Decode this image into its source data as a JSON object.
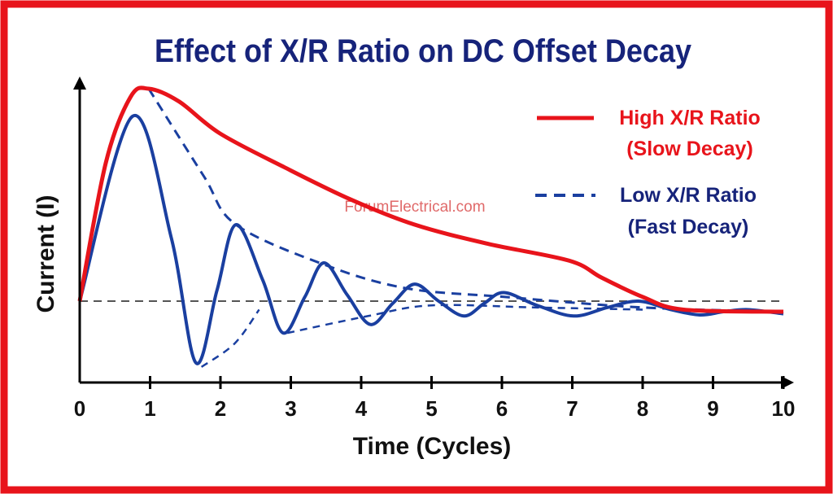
{
  "chart_data": {
    "type": "line",
    "title": "Effect of X/R Ratio on DC Offset Decay",
    "xlabel": "Time (Cycles)",
    "ylabel": "Current (I)",
    "xlim": [
      0,
      10
    ],
    "ylim": [
      -0.38,
      1.05
    ],
    "x_ticks": [
      "0",
      "1",
      "2",
      "3",
      "4",
      "5",
      "6",
      "7",
      "8",
      "9",
      "10"
    ],
    "grid": false,
    "legend_position": "top-right",
    "watermark": "ForumElectrical.com",
    "colors": {
      "frame": "#e8141b",
      "title": "#16237a",
      "high": "#e8141b",
      "low": "#1a3fa0",
      "zero": "#555555",
      "watermark": "#e06a6a"
    },
    "series": [
      {
        "name": "High X/R Ratio",
        "sub": "(Slow Decay)",
        "style": "solid",
        "x": [
          0,
          0.37,
          0.72,
          0.98,
          1.41,
          1.99,
          2.91,
          3.84,
          4.76,
          5.8,
          6.96,
          7.42,
          8.0,
          8.58,
          10
        ],
        "y": [
          0,
          0.65,
          0.96,
          1.0,
          0.94,
          0.79,
          0.63,
          0.48,
          0.36,
          0.27,
          0.19,
          0.11,
          0.02,
          -0.04,
          -0.05
        ]
      },
      {
        "name": "Low X/R Ratio",
        "sub": "(Fast Decay)",
        "style": "dashed",
        "x": [
          0.98,
          1.76,
          2.22,
          3.49,
          4.65,
          6.03,
          8.0,
          10
        ],
        "y": [
          1.0,
          0.59,
          0.36,
          0.17,
          0.06,
          0.02,
          -0.03,
          -0.05
        ]
      }
    ],
    "oscillation": {
      "x": [
        0,
        0.75,
        1.3,
        1.65,
        1.95,
        2.22,
        2.6,
        2.89,
        3.2,
        3.47,
        3.8,
        4.13,
        4.45,
        4.76,
        5.1,
        5.46,
        5.75,
        6.03,
        6.5,
        7.02,
        7.5,
        7.94,
        8.4,
        8.81,
        9.15,
        9.5,
        10
      ],
      "y": [
        0,
        0.87,
        0.3,
        -0.29,
        0.05,
        0.36,
        0.1,
        -0.15,
        0.02,
        0.18,
        0.03,
        -0.11,
        -0.01,
        0.08,
        0.0,
        -0.07,
        -0.01,
        0.04,
        -0.02,
        -0.07,
        -0.03,
        0.0,
        -0.04,
        -0.065,
        -0.05,
        -0.04,
        -0.06
      ]
    },
    "lower_envelope": [
      {
        "x": [
          1.73,
          2.2,
          2.55
        ],
        "y": [
          -0.31,
          -0.2,
          -0.04
        ]
      },
      {
        "x": [
          2.95,
          4.1,
          5.0,
          6.5,
          8.0
        ],
        "y": [
          -0.15,
          -0.07,
          -0.02,
          -0.03,
          -0.04
        ]
      }
    ]
  }
}
